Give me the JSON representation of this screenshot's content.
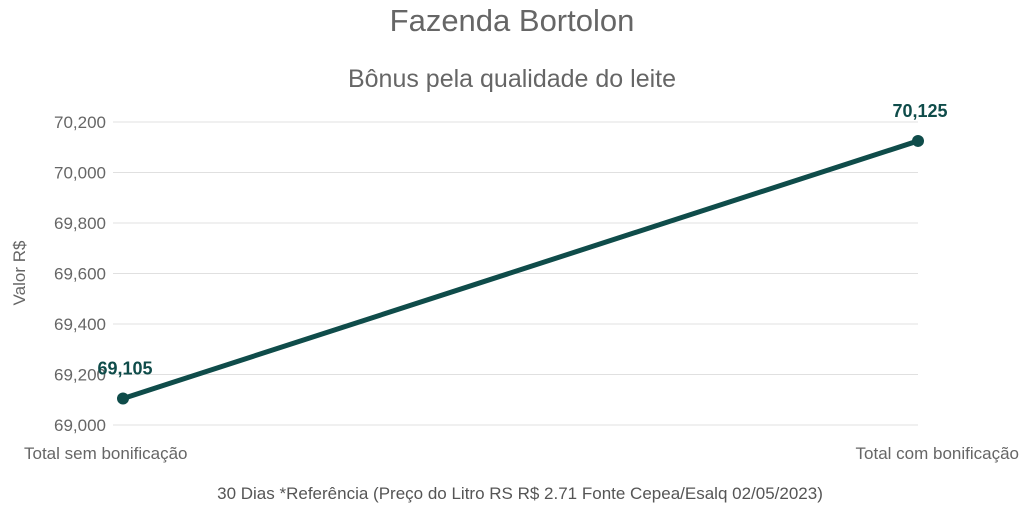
{
  "chart_data": {
    "type": "line",
    "title": "Fazenda Bortolon",
    "subtitle": "Bônus pela qualidade do leite",
    "xlabel": "30 Dias *Referência (Preço do Litro RS R$ 2.71 Fonte Cepea/Esalq 02/05/2023)",
    "ylabel": "Valor R$",
    "categories": [
      "Total sem bonificação",
      "Total com bonificação"
    ],
    "series": [
      {
        "values": [
          69105,
          70125
        ],
        "data_labels": [
          "69,105",
          "70,125"
        ]
      }
    ],
    "ylim": [
      69000,
      70200
    ],
    "yticks": [
      69000,
      69200,
      69400,
      69600,
      69800,
      70000,
      70200
    ],
    "ytick_labels": [
      "69,000",
      "69,200",
      "69,400",
      "69,600",
      "69,800",
      "70,000",
      "70,200"
    ],
    "grid": true,
    "legend": "none",
    "colors": {
      "line": "#0f4c4a",
      "data_label": "#0f4c4a",
      "title": "#666666",
      "axis_text": "#666666",
      "grid": "#e0e0e0"
    }
  }
}
